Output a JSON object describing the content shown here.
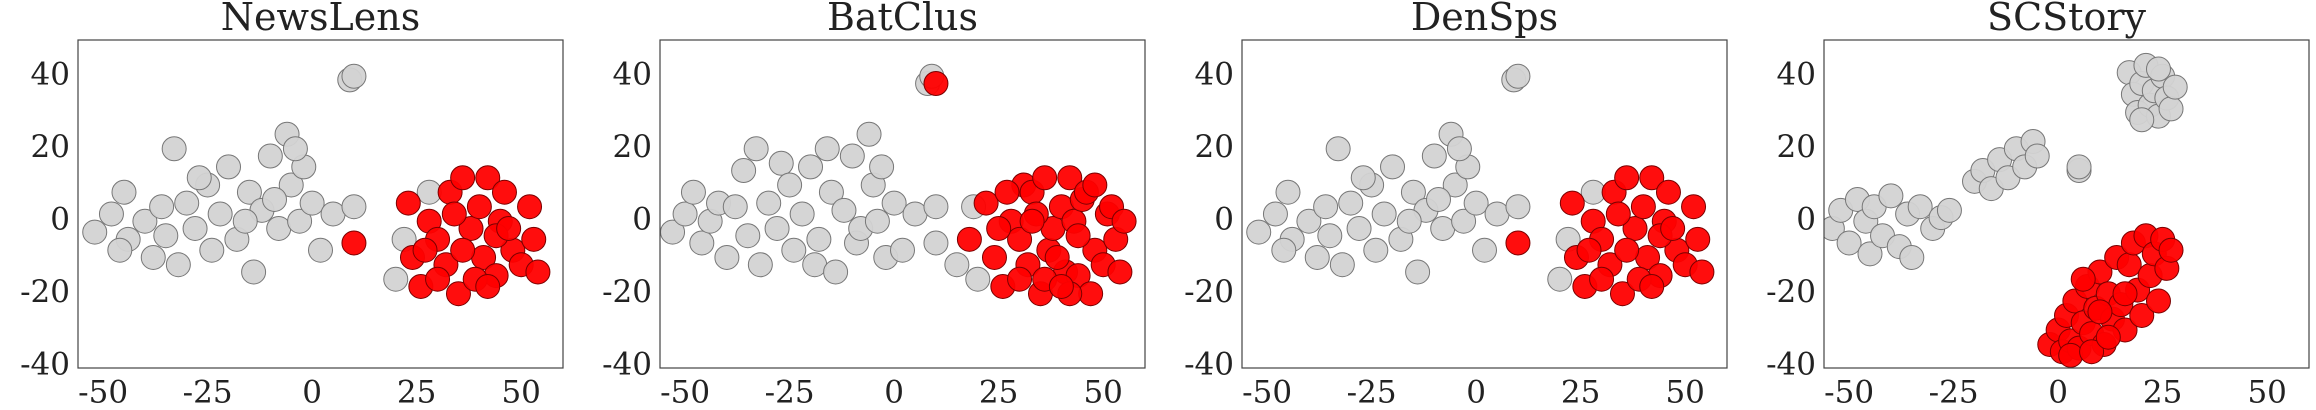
{
  "chart_data": [
    {
      "type": "scatter",
      "title": "NewsLens",
      "xlim": [
        -56,
        60
      ],
      "ylim": [
        -40.5,
        50
      ],
      "xticks": [
        -50,
        -25,
        0,
        25,
        50
      ],
      "yticks": [
        -40,
        -20,
        0,
        20,
        40
      ],
      "series": [
        {
          "color": "#d3d3d3",
          "x": [
            -52,
            -48,
            -45,
            -44,
            -40,
            -38,
            -36,
            -33,
            -32,
            -30,
            -28,
            -25,
            -24,
            -22,
            -20,
            -18,
            -15,
            -14,
            -12,
            -10,
            -8,
            -6,
            -5,
            -3,
            -2,
            0,
            2,
            5,
            9,
            10,
            10,
            20,
            28,
            22,
            -46,
            -35,
            -27,
            -16,
            -9,
            -4
          ],
          "values": [
            -3,
            2,
            8,
            -5,
            0,
            -10,
            4,
            20,
            -12,
            5,
            -2,
            10,
            -8,
            2,
            15,
            -5,
            8,
            -14,
            3,
            18,
            -2,
            24,
            10,
            0,
            15,
            5,
            -8,
            2,
            39,
            40,
            4,
            -16,
            8,
            -5,
            -8,
            -4,
            12,
            0,
            6,
            20
          ]
        },
        {
          "color": "#ff0000",
          "x": [
            10,
            23,
            24,
            26,
            28,
            30,
            32,
            33,
            35,
            36,
            38,
            40,
            41,
            42,
            44,
            45,
            46,
            48,
            50,
            52,
            53,
            54,
            30,
            36,
            44,
            27,
            39,
            47,
            34,
            42
          ],
          "values": [
            -6,
            5,
            -10,
            -18,
            0,
            -5,
            -12,
            8,
            -20,
            12,
            -2,
            4,
            -10,
            12,
            -15,
            0,
            8,
            -8,
            -12,
            4,
            -5,
            -14,
            -16,
            -8,
            -4,
            -8,
            -16,
            -2,
            2,
            -18
          ]
        }
      ]
    },
    {
      "type": "scatter",
      "title": "BatClus",
      "xlim": [
        -56,
        60
      ],
      "ylim": [
        -40.5,
        50
      ],
      "xticks": [
        -50,
        -25,
        0,
        25,
        50
      ],
      "yticks": [
        -40,
        -20,
        0,
        20,
        40
      ],
      "series": [
        {
          "color": "#d3d3d3",
          "x": [
            -53,
            -50,
            -48,
            -46,
            -44,
            -42,
            -40,
            -38,
            -36,
            -35,
            -33,
            -32,
            -30,
            -28,
            -27,
            -25,
            -24,
            -22,
            -20,
            -19,
            -18,
            -16,
            -15,
            -14,
            -12,
            -10,
            -9,
            -8,
            -6,
            -5,
            -4,
            -3,
            -2,
            0,
            2,
            5,
            8,
            9,
            10,
            10,
            20,
            19,
            15
          ],
          "values": [
            -3,
            2,
            8,
            -6,
            0,
            5,
            -10,
            4,
            14,
            -4,
            20,
            -12,
            5,
            -2,
            16,
            10,
            -8,
            2,
            15,
            -12,
            -5,
            20,
            8,
            -14,
            3,
            18,
            -6,
            -2,
            24,
            10,
            0,
            15,
            -10,
            5,
            -8,
            2,
            38,
            40,
            4,
            -6,
            -16,
            4,
            -12
          ]
        },
        {
          "color": "#ff0000",
          "x": [
            10,
            18,
            22,
            24,
            26,
            28,
            30,
            31,
            32,
            33,
            35,
            36,
            37,
            38,
            40,
            41,
            42,
            43,
            44,
            45,
            46,
            47,
            48,
            50,
            51,
            52,
            53,
            54,
            55,
            30,
            36,
            44,
            27,
            39,
            34,
            42,
            48,
            25,
            33,
            40
          ],
          "values": [
            38,
            -5,
            5,
            -10,
            -18,
            0,
            -5,
            10,
            -12,
            8,
            -20,
            12,
            -8,
            -2,
            4,
            -14,
            12,
            0,
            -15,
            6,
            8,
            -20,
            -8,
            -12,
            2,
            4,
            -5,
            -14,
            0,
            -16,
            -16,
            -4,
            8,
            -10,
            2,
            -20,
            10,
            -2,
            0,
            -18
          ]
        }
      ]
    },
    {
      "type": "scatter",
      "title": "DenSps",
      "xlim": [
        -56,
        60
      ],
      "ylim": [
        -40.5,
        50
      ],
      "xticks": [
        -50,
        -25,
        0,
        25,
        50
      ],
      "yticks": [
        -40,
        -20,
        0,
        20,
        40
      ],
      "series": [
        {
          "color": "#d3d3d3",
          "x": [
            -52,
            -48,
            -45,
            -44,
            -40,
            -38,
            -36,
            -33,
            -32,
            -30,
            -28,
            -25,
            -24,
            -22,
            -20,
            -18,
            -15,
            -14,
            -12,
            -10,
            -8,
            -6,
            -5,
            -3,
            -2,
            0,
            2,
            5,
            9,
            10,
            10,
            20,
            28,
            22,
            -46,
            -35,
            -27,
            -16,
            -9,
            -4
          ],
          "values": [
            -3,
            2,
            8,
            -5,
            0,
            -10,
            4,
            20,
            -12,
            5,
            -2,
            10,
            -8,
            2,
            15,
            -5,
            8,
            -14,
            3,
            18,
            -2,
            24,
            10,
            0,
            15,
            5,
            -8,
            2,
            39,
            40,
            4,
            -16,
            8,
            -5,
            -8,
            -4,
            12,
            0,
            6,
            20
          ]
        },
        {
          "color": "#ff0000",
          "x": [
            10,
            23,
            24,
            26,
            28,
            30,
            32,
            33,
            35,
            36,
            38,
            40,
            41,
            42,
            44,
            45,
            46,
            48,
            50,
            52,
            53,
            54,
            30,
            36,
            44,
            27,
            39,
            47,
            34,
            42
          ],
          "values": [
            -6,
            5,
            -10,
            -18,
            0,
            -5,
            -12,
            8,
            -20,
            12,
            -2,
            4,
            -10,
            12,
            -15,
            0,
            8,
            -8,
            -12,
            4,
            -5,
            -14,
            -16,
            -8,
            -4,
            -8,
            -16,
            -2,
            2,
            -18
          ]
        }
      ]
    },
    {
      "type": "scatter",
      "title": "SCStory",
      "xlim": [
        -56,
        60
      ],
      "ylim": [
        -40.5,
        50
      ],
      "xticks": [
        -50,
        -25,
        0,
        25,
        50
      ],
      "yticks": [
        -40,
        -20,
        0,
        20,
        40
      ],
      "series": [
        {
          "color": "#d3d3d3",
          "x": [
            -54,
            -52,
            -50,
            -48,
            -46,
            -45,
            -44,
            -42,
            -40,
            -38,
            -36,
            -35,
            -33,
            -30,
            -28,
            -26,
            -20,
            -18,
            -16,
            -14,
            -12,
            -10,
            -8,
            -6,
            -5,
            5,
            5,
            17,
            18,
            19,
            20,
            21,
            22,
            23,
            24,
            25,
            26,
            27,
            20,
            24,
            28
          ],
          "values": [
            -2,
            3,
            -6,
            6,
            0,
            -9,
            4,
            -4,
            7,
            -7,
            2,
            -10,
            4,
            -2,
            1,
            3,
            11,
            14,
            9,
            17,
            12,
            20,
            15,
            22,
            18,
            14,
            15,
            41,
            35,
            30,
            38,
            43,
            32,
            36,
            29,
            40,
            34,
            31,
            28,
            42,
            37
          ]
        },
        {
          "color": "#ff0000",
          "x": [
            -2,
            0,
            1,
            2,
            3,
            4,
            5,
            6,
            7,
            8,
            9,
            10,
            11,
            12,
            13,
            14,
            15,
            16,
            17,
            18,
            19,
            20,
            21,
            22,
            23,
            24,
            25,
            26,
            27,
            3,
            8,
            12,
            6,
            16,
            10
          ],
          "values": [
            -34,
            -30,
            -36,
            -26,
            -33,
            -22,
            -35,
            -28,
            -18,
            -31,
            -24,
            -14,
            -34,
            -20,
            -27,
            -10,
            -23,
            -30,
            -12,
            -6,
            -19,
            -26,
            -4,
            -15,
            -9,
            -22,
            -5,
            -13,
            -8,
            -37,
            -36,
            -32,
            -16,
            -20,
            -25
          ]
        }
      ]
    }
  ]
}
